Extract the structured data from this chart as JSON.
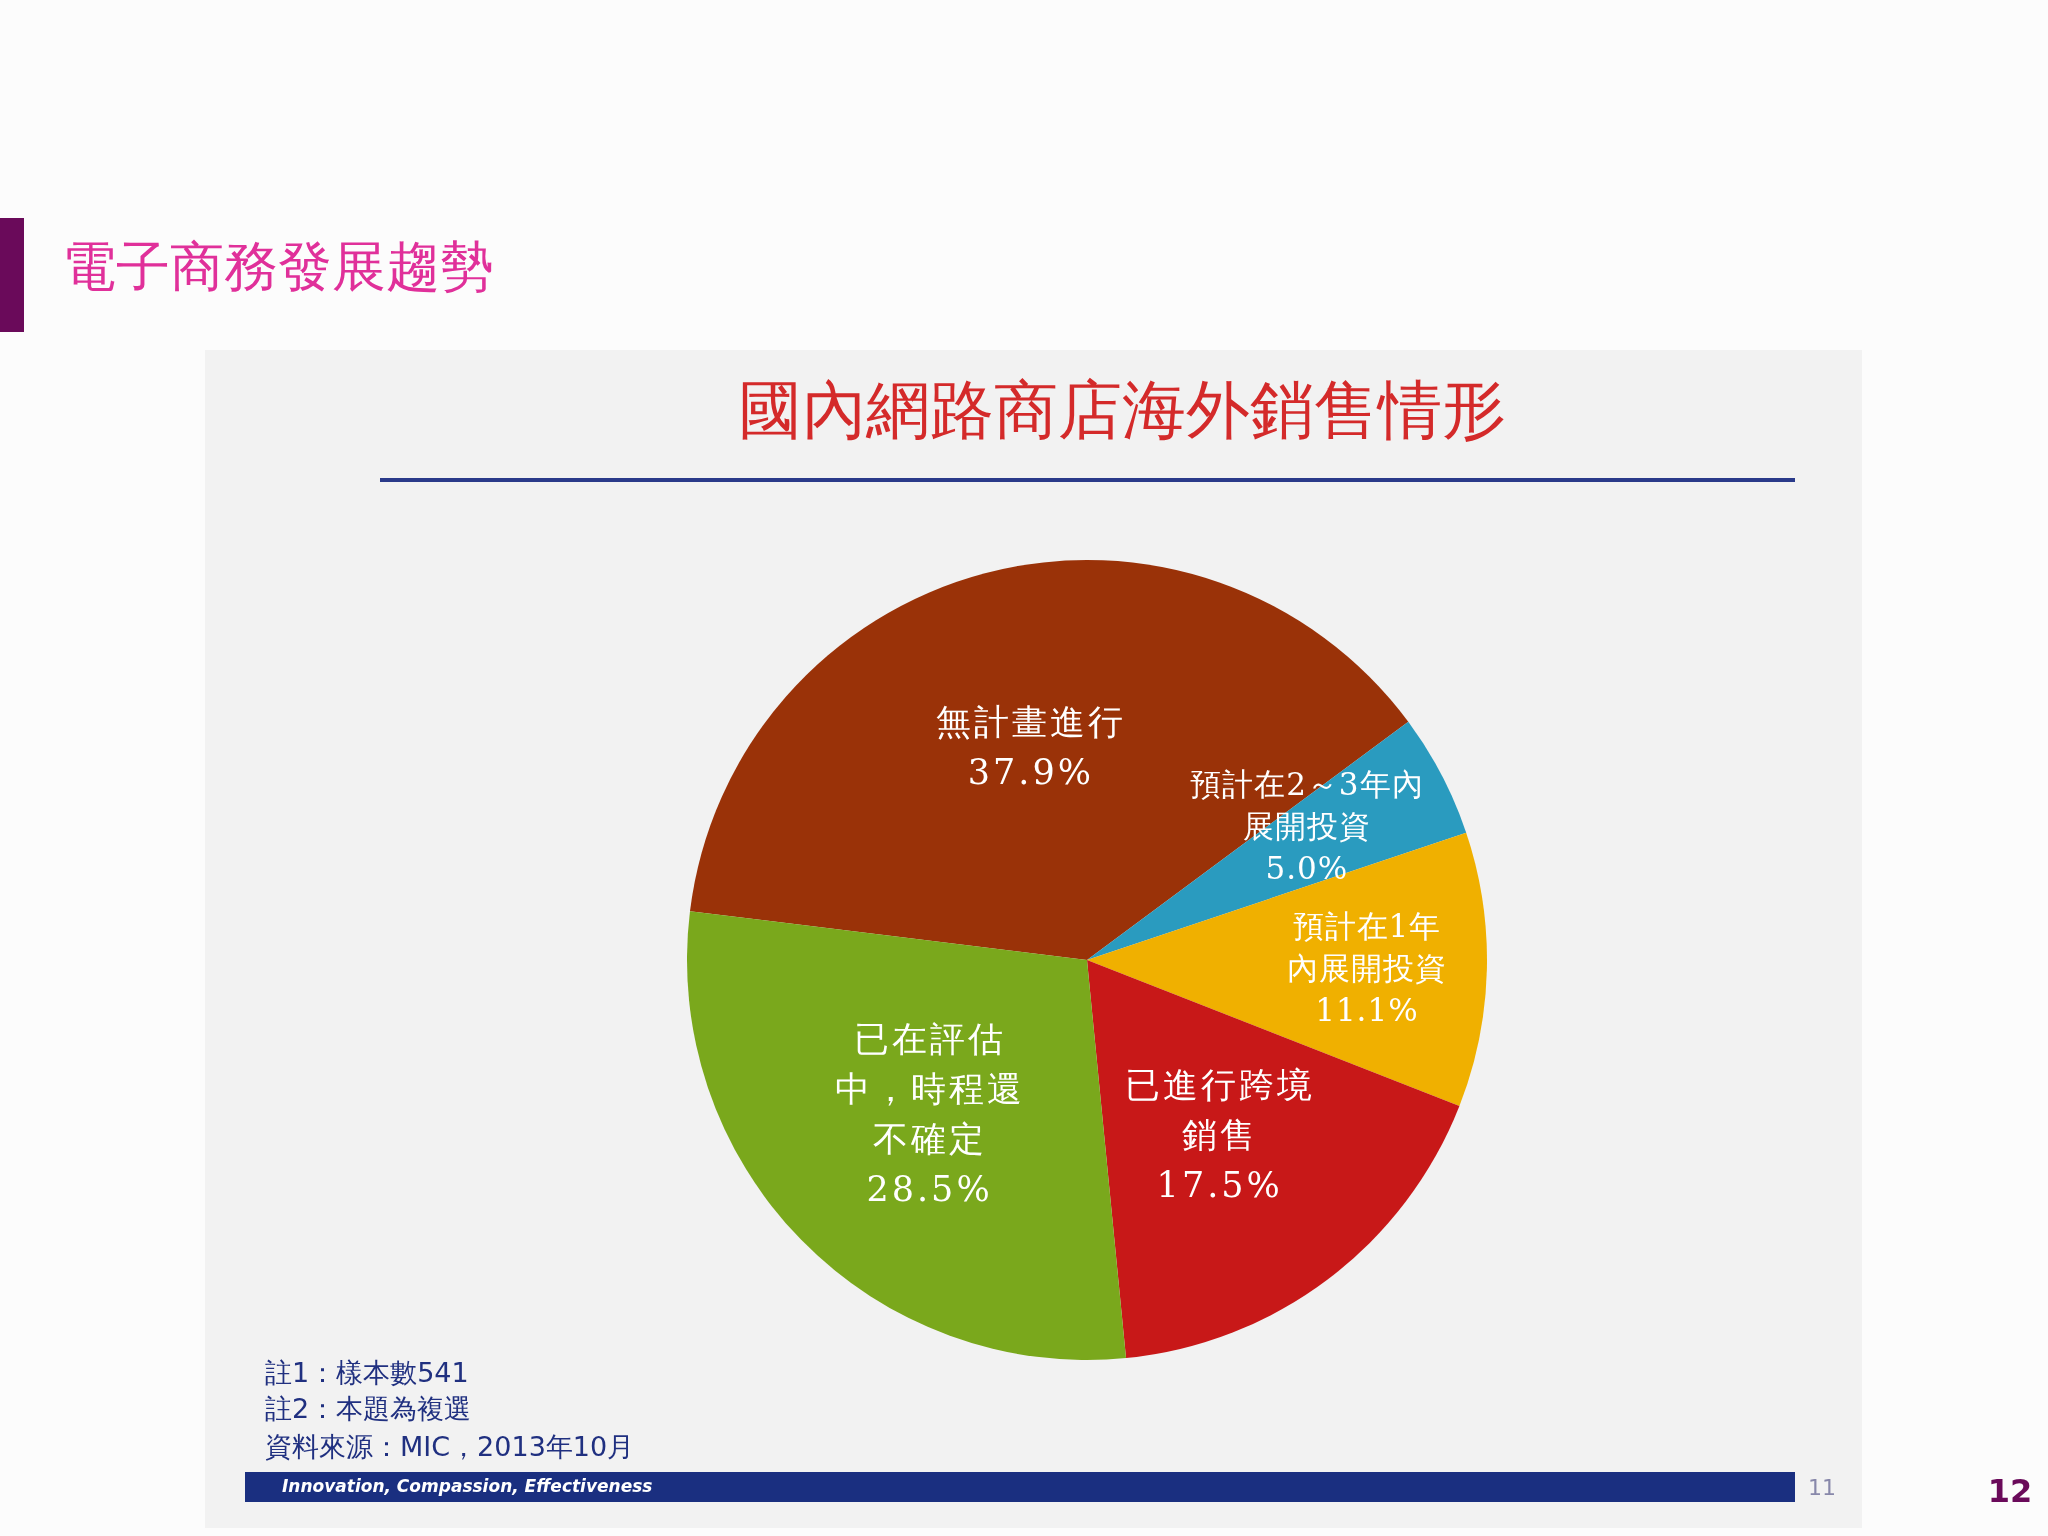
{
  "chart_data": {
    "type": "pie",
    "title": "國內網路商店海外銷售情形",
    "subtitle": "電子商務發展趨勢",
    "categories": [
      "無計畫進行",
      "預計在2～3年內展開投資",
      "預計在1年內展開投資",
      "已進行跨境銷售",
      "已在評估中，時程還不確定"
    ],
    "values": [
      37.9,
      5.0,
      11.1,
      17.5,
      28.5
    ],
    "value_labels": [
      "37.9%",
      "5.0%",
      "11.1%",
      "17.5%",
      "28.5%"
    ],
    "colors": [
      "#9a3208",
      "#2a9bbf",
      "#f0b000",
      "#c81818",
      "#7aa81c"
    ],
    "annotations": [
      "註1：樣本數541",
      "註2：本題為複選",
      "資料來源：MIC，2013年10月",
      "Innovation, Compassion, Effectiveness",
      "11",
      "12"
    ]
  }
}
